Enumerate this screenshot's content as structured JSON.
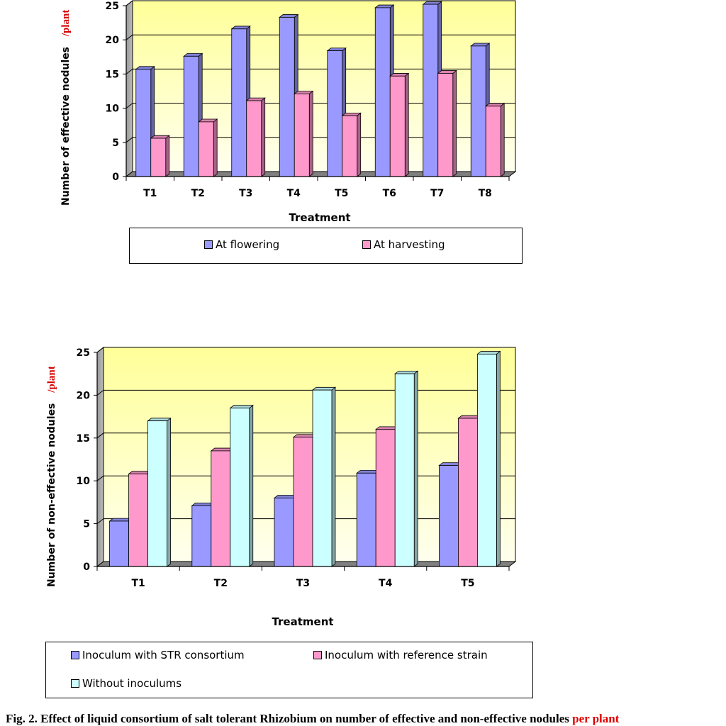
{
  "charts": [
    {
      "ylabel_main": "Number of effective nodules",
      "ylabel_unit": "/plant",
      "legend": [
        "At flowering",
        "At harvesting"
      ]
    },
    {
      "ylabel_main": "Number of non-effective nodules",
      "ylabel_unit": "/plant",
      "legend": [
        "Inoculum with STR consortium",
        "Inoculum with reference strain",
        "Without inoculums"
      ]
    }
  ],
  "caption": {
    "main": "Fig. 2. Effect of liquid consortium of salt tolerant Rhizobium on number of effective and non-effective nodules",
    "tail": "per plant"
  },
  "colors": {
    "flowering": "#9999ff",
    "harvesting": "#ff99cc",
    "without": "#ccffff",
    "plot_top": "#ffff99",
    "plot_bottom": "#ffffe8",
    "red_text": "#e00000"
  },
  "chart_data": [
    {
      "type": "bar",
      "title": "",
      "xlabel": "Treatment",
      "ylabel": "Number of effective nodules /plant",
      "ylim": [
        0,
        25
      ],
      "yticks": [
        0,
        5,
        10,
        15,
        20,
        25
      ],
      "grid": true,
      "legend_position": "bottom",
      "categories": [
        "T1",
        "T2",
        "T3",
        "T4",
        "T5",
        "T6",
        "T7",
        "T8"
      ],
      "series": [
        {
          "name": "At flowering",
          "values": [
            15.7,
            17.6,
            21.6,
            23.3,
            18.4,
            24.7,
            25.2,
            19.1
          ]
        },
        {
          "name": "At harvesting",
          "values": [
            5.6,
            8.0,
            11.1,
            12.1,
            8.9,
            14.7,
            15.1,
            10.3
          ]
        }
      ]
    },
    {
      "type": "bar",
      "title": "",
      "xlabel": "Treatment",
      "ylabel": "Number of non-effective nodules /plant",
      "ylim": [
        0,
        25
      ],
      "yticks": [
        0,
        5,
        10,
        15,
        20,
        25
      ],
      "grid": true,
      "legend_position": "bottom",
      "categories": [
        "T1",
        "T2",
        "T3",
        "T4",
        "T5"
      ],
      "series": [
        {
          "name": "Inoculum with STR consortium",
          "values": [
            5.3,
            7.1,
            8.0,
            10.9,
            11.8
          ]
        },
        {
          "name": "Inoculum with reference strain",
          "values": [
            10.8,
            13.5,
            15.1,
            16.0,
            17.3
          ]
        },
        {
          "name": "Without inoculums",
          "values": [
            17.0,
            18.5,
            20.6,
            22.5,
            24.8
          ]
        }
      ]
    }
  ]
}
